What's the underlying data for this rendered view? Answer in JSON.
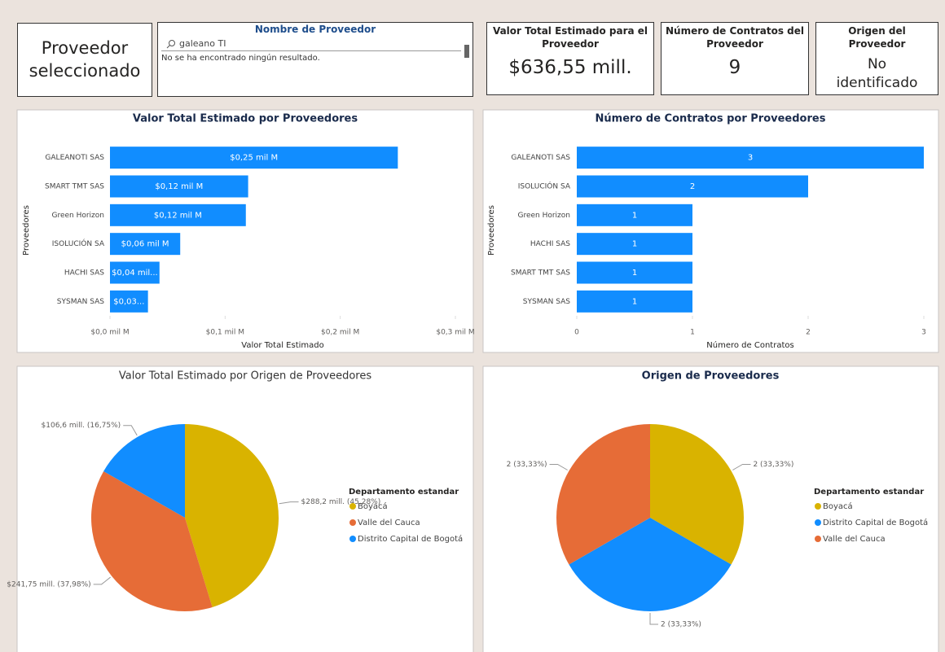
{
  "selected_card": {
    "text": "Proveedor seleccionado"
  },
  "slicer": {
    "title": "Nombre de Proveedor",
    "search": "galeano TI",
    "message": "No se ha encontrado ningún resultado."
  },
  "kpis": [
    {
      "title": "Valor Total Estimado para el Proveedor",
      "value": "$636,55 mill."
    },
    {
      "title": "Número de Contratos del Proveedor",
      "value": 9
    },
    {
      "title": "Origen del Proveedor",
      "value": "No identificado"
    }
  ],
  "chart_data": [
    {
      "type": "bar",
      "orientation": "horizontal",
      "title": "Valor Total Estimado por Proveedores",
      "categories": [
        "GALEANOTI SAS",
        "SMART TMT SAS",
        "Green Horizon",
        "ISOLUCIÓN SA",
        "HACHI SAS",
        "SYSMAN SAS"
      ],
      "values": [
        0.25,
        0.12,
        0.118,
        0.061,
        0.043,
        0.033
      ],
      "value_labels": [
        "$0,25 mil M",
        "$0,12 mil M",
        "$0,12 mil M",
        "$0,06 mil M",
        "$0,04 mil...",
        "$0,03..."
      ],
      "color": "#118dff",
      "xlim": [
        0,
        0.3
      ],
      "xticks": [
        {
          "value": 0,
          "label": "$0,0 mil M"
        },
        {
          "value": 0.1,
          "label": "$0,1 mil M"
        },
        {
          "value": 0.2,
          "label": "$0,2 mil M"
        },
        {
          "value": 0.3,
          "label": "$0,3 mil M"
        }
      ],
      "xlabel": "Valor Total Estimado",
      "ylabel": "Proveedores"
    },
    {
      "type": "bar",
      "orientation": "horizontal",
      "title": "Número de Contratos por Proveedores",
      "categories": [
        "GALEANOTI SAS",
        "ISOLUCIÓN SA",
        "Green Horizon",
        "HACHI SAS",
        "SMART TMT SAS",
        "SYSMAN SAS"
      ],
      "values": [
        3,
        2,
        1,
        1,
        1,
        1
      ],
      "color": "#118dff",
      "xlim": [
        0,
        3
      ],
      "xticks": [
        0,
        1,
        2,
        3
      ],
      "xlabel": "Número de Contratos",
      "ylabel": "Proveedores"
    },
    {
      "type": "pie",
      "title": "Valor Total Estimado por Origen de Proveedores",
      "categories": [
        "Boyacá",
        "Valle del Cauca",
        "Distrito Capital de Bogotá"
      ],
      "values": [
        288.2,
        241.75,
        106.6
      ],
      "value_labels": [
        "$288,2 mill. (45,28%)",
        "$241,75 mill. (37,98%)",
        "$106,6 mill. (16,75%)"
      ],
      "colors": [
        "#d9b300",
        "#e66c37",
        "#118dff"
      ],
      "legend_title": "Departamento estandar"
    },
    {
      "type": "pie",
      "title": "Origen de Proveedores",
      "categories": [
        "Boyacá",
        "Distrito Capital de Bogotá",
        "Valle del Cauca"
      ],
      "values": [
        2,
        2,
        2
      ],
      "value_labels": [
        "2 (33,33%)",
        "2 (33,33%)",
        "2 (33,33%)"
      ],
      "colors": [
        "#d9b300",
        "#118dff",
        "#e66c37"
      ],
      "legend_title": "Departamento estandar"
    }
  ]
}
